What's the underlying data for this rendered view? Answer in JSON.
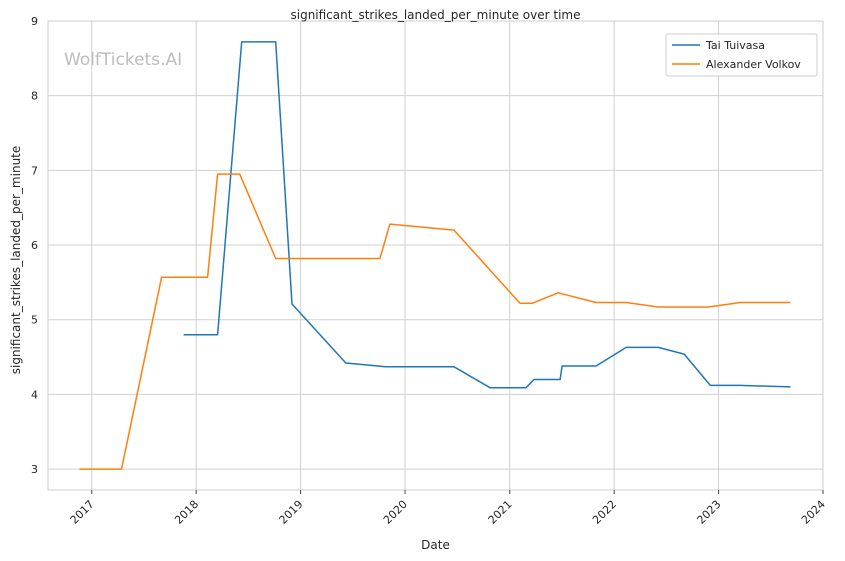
{
  "chart_data": {
    "type": "line",
    "title": "significant_strikes_landed_per_minute over time",
    "xlabel": "Date",
    "ylabel": "significant_strikes_landed_per_minute",
    "xlim": [
      "2016-08-01",
      "2024-01-01"
    ],
    "ylim": [
      2.72,
      9.0
    ],
    "x_ticks": [
      "2017-01-01",
      "2018-01-01",
      "2019-01-01",
      "2020-01-01",
      "2021-01-01",
      "2022-01-01",
      "2023-01-01",
      "2024-01-01"
    ],
    "x_tick_labels": [
      "2017",
      "2018",
      "2019",
      "2020",
      "2021",
      "2022",
      "2023",
      "2024"
    ],
    "y_ticks": [
      3,
      4,
      5,
      6,
      7,
      8,
      9
    ],
    "y_tick_labels": [
      "3",
      "4",
      "5",
      "6",
      "7",
      "8",
      "9"
    ],
    "grid": true,
    "legend_position": "top-right",
    "watermark": "WolfTickets.AI",
    "series": [
      {
        "name": "Tai Tuivasa",
        "color": "#1f77b4",
        "points": [
          [
            "2017-11-18",
            4.8
          ],
          [
            "2018-03-17",
            4.8
          ],
          [
            "2018-06-09",
            8.72
          ],
          [
            "2018-10-06",
            8.72
          ],
          [
            "2018-12-02",
            5.21
          ],
          [
            "2019-06-08",
            4.42
          ],
          [
            "2019-10-26",
            4.37
          ],
          [
            "2020-06-20",
            4.37
          ],
          [
            "2020-10-24",
            4.09
          ],
          [
            "2021-02-27",
            4.09
          ],
          [
            "2021-03-27",
            4.2
          ],
          [
            "2021-06-26",
            4.2
          ],
          [
            "2021-07-03",
            4.38
          ],
          [
            "2021-10-30",
            4.38
          ],
          [
            "2022-02-12",
            4.63
          ],
          [
            "2022-06-04",
            4.63
          ],
          [
            "2022-09-03",
            4.54
          ],
          [
            "2022-12-03",
            4.12
          ],
          [
            "2023-03-18",
            4.12
          ],
          [
            "2023-09-09",
            4.1
          ]
        ]
      },
      {
        "name": "Alexander Volkov",
        "color": "#ff7f0e",
        "points": [
          [
            "2016-11-19",
            3.0
          ],
          [
            "2017-04-15",
            3.0
          ],
          [
            "2017-09-02",
            5.57
          ],
          [
            "2018-02-10",
            5.57
          ],
          [
            "2018-03-17",
            6.95
          ],
          [
            "2018-06-02",
            6.95
          ],
          [
            "2018-10-06",
            5.82
          ],
          [
            "2019-10-05",
            5.82
          ],
          [
            "2019-11-09",
            6.28
          ],
          [
            "2020-06-20",
            6.2
          ],
          [
            "2021-02-06",
            5.22
          ],
          [
            "2021-03-20",
            5.22
          ],
          [
            "2021-06-19",
            5.36
          ],
          [
            "2021-10-30",
            5.23
          ],
          [
            "2022-02-12",
            5.23
          ],
          [
            "2022-06-04",
            5.17
          ],
          [
            "2022-11-26",
            5.17
          ],
          [
            "2023-03-18",
            5.23
          ],
          [
            "2023-09-09",
            5.23
          ]
        ]
      }
    ]
  }
}
